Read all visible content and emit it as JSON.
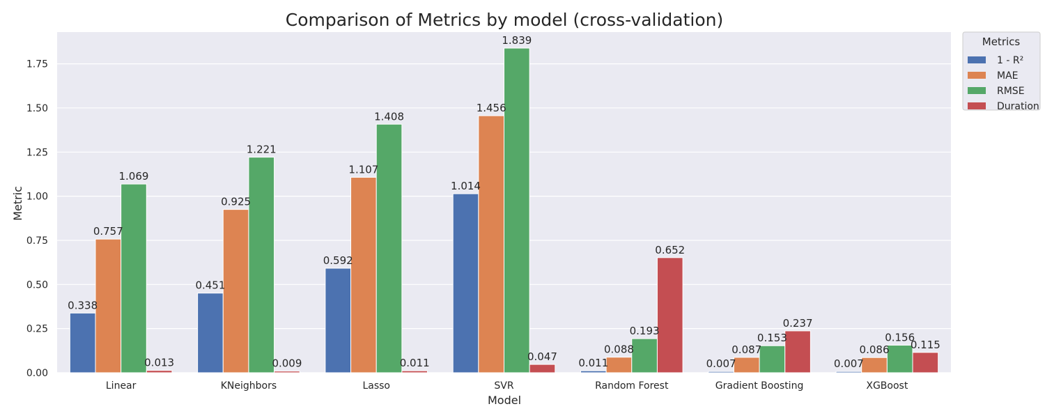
{
  "chart_data": {
    "type": "bar",
    "title": "Comparison of Metrics by model (cross-validation)",
    "xlabel": "Model",
    "ylabel": "Metric",
    "ylim": [
      0,
      1.93
    ],
    "yticks": [
      "0.00",
      "0.25",
      "0.50",
      "0.75",
      "1.00",
      "1.25",
      "1.50",
      "1.75"
    ],
    "ytick_values": [
      0,
      0.25,
      0.5,
      0.75,
      1.0,
      1.25,
      1.5,
      1.75
    ],
    "grid": true,
    "legend_title": "Metrics",
    "legend_position": "outside top-right",
    "categories": [
      "Linear",
      "KNeighbors",
      "Lasso",
      "SVR",
      "Random Forest",
      "Gradient Boosting",
      "XGBoost"
    ],
    "series": [
      {
        "name": "1 - R²",
        "color": "#4c72b0",
        "values": [
          0.338,
          0.451,
          0.592,
          1.014,
          0.011,
          0.007,
          0.007
        ],
        "labels": [
          "0.338",
          "0.451",
          "0.592",
          "1.014",
          "0.011",
          "0.007",
          "0.007"
        ]
      },
      {
        "name": "MAE",
        "color": "#dd8452",
        "values": [
          0.757,
          0.925,
          1.107,
          1.456,
          0.088,
          0.087,
          0.086
        ],
        "labels": [
          "0.757",
          "0.925",
          "1.107",
          "1.456",
          "0.088",
          "0.087",
          "0.086"
        ]
      },
      {
        "name": "RMSE",
        "color": "#55a868",
        "values": [
          1.069,
          1.221,
          1.408,
          1.839,
          0.193,
          0.153,
          0.156
        ],
        "labels": [
          "1.069",
          "1.221",
          "1.408",
          "1.839",
          "0.193",
          "0.153",
          "0.156"
        ]
      },
      {
        "name": "Duration",
        "color": "#c44e52",
        "values": [
          0.013,
          0.009,
          0.011,
          0.047,
          0.652,
          0.237,
          0.115
        ],
        "labels": [
          "0.013",
          "0.009",
          "0.011",
          "0.047",
          "0.652",
          "0.237",
          "0.115"
        ]
      }
    ]
  }
}
